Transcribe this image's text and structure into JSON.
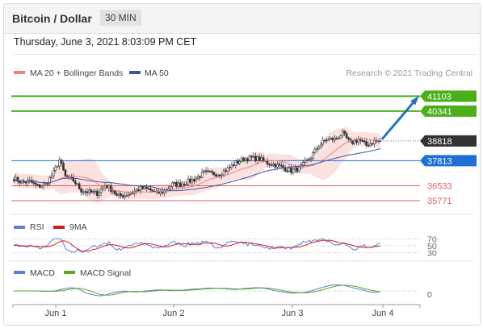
{
  "header": {
    "title": "Bitcoin / Dollar",
    "interval": "30 MIN"
  },
  "datetime": "Thursday, June 3, 2021 8:03:09 PM CET",
  "legend": {
    "ma20_label": "MA 20 + Bollinger Bands",
    "ma50_label": "MA 50",
    "credit": "Research © 2021 Trading Central"
  },
  "colors": {
    "bull": "#3d9a2a",
    "bear": "#c0392b",
    "ma20": "#f08080",
    "ma50": "#3a5aa0",
    "band": "#fbd7d7",
    "resistance": "#4caf1a",
    "pivot": "#1f6fd6",
    "support": "#e06060",
    "rsi": "#5b7fd6",
    "rsi_ma": "#d21d1d",
    "macd": "#5b7fd6",
    "macd_signal": "#5aa624",
    "arrow": "#2a6fbf"
  },
  "levels": [
    {
      "value": 41103,
      "label": "41103",
      "kind": "resistance"
    },
    {
      "value": 40341,
      "label": "40341",
      "kind": "resistance"
    },
    {
      "value": 38818,
      "label": "38818",
      "kind": "last"
    },
    {
      "value": 37813,
      "label": "37813",
      "kind": "pivot"
    },
    {
      "value": 36533,
      "label": "36533",
      "kind": "support"
    },
    {
      "value": 35771,
      "label": "35771",
      "kind": "support"
    }
  ],
  "rsi_panel": {
    "labels": {
      "rsi": "RSI",
      "ma": "9MA"
    },
    "ticks": [
      "70",
      "50",
      "30"
    ]
  },
  "macd_panel": {
    "labels": {
      "macd": "MACD",
      "signal": "MACD Signal"
    },
    "ticks": [
      "0"
    ]
  },
  "xaxis": {
    "labels": [
      "Jun 1",
      "Jun 2",
      "Jun 3",
      "Jun 4"
    ]
  },
  "chart_data": {
    "type": "candlestick",
    "title": "Bitcoin / Dollar",
    "interval": "30 MIN",
    "ylim": [
      35400,
      41900
    ],
    "x_labels": [
      "Jun 1",
      "Jun 2",
      "Jun 3",
      "Jun 4"
    ],
    "close_path": [
      [
        0,
        36900
      ],
      [
        4,
        36700
      ],
      [
        8,
        36750
      ],
      [
        12,
        36500
      ],
      [
        16,
        36600
      ],
      [
        20,
        37200
      ],
      [
        23,
        37850
      ],
      [
        26,
        37000
      ],
      [
        30,
        36800
      ],
      [
        34,
        36300
      ],
      [
        38,
        36200
      ],
      [
        42,
        36150
      ],
      [
        46,
        36550
      ],
      [
        50,
        36300
      ],
      [
        52,
        36000
      ],
      [
        56,
        36050
      ],
      [
        60,
        36200
      ],
      [
        64,
        36400
      ],
      [
        68,
        36350
      ],
      [
        72,
        36150
      ],
      [
        76,
        36250
      ],
      [
        80,
        36600
      ],
      [
        84,
        36600
      ],
      [
        88,
        36750
      ],
      [
        92,
        36900
      ],
      [
        96,
        37200
      ],
      [
        100,
        37150
      ],
      [
        104,
        37150
      ],
      [
        108,
        37400
      ],
      [
        112,
        37700
      ],
      [
        116,
        37900
      ],
      [
        120,
        37950
      ],
      [
        124,
        37900
      ],
      [
        128,
        37700
      ],
      [
        132,
        37600
      ],
      [
        136,
        37450
      ],
      [
        140,
        37300
      ],
      [
        144,
        37400
      ],
      [
        150,
        38000
      ],
      [
        154,
        38600
      ],
      [
        158,
        38900
      ],
      [
        162,
        38900
      ],
      [
        166,
        39200
      ],
      [
        170,
        38700
      ],
      [
        174,
        38900
      ],
      [
        178,
        38600
      ],
      [
        182,
        38800
      ],
      [
        185,
        38818
      ]
    ],
    "last_value": 38818,
    "projection_target": 41103,
    "rsi": {
      "name": "RSI",
      "ma_name": "9MA",
      "levels": [
        70,
        50,
        30
      ]
    },
    "macd": {
      "name": "MACD",
      "signal_name": "MACD Signal",
      "zero_label": "0"
    }
  }
}
